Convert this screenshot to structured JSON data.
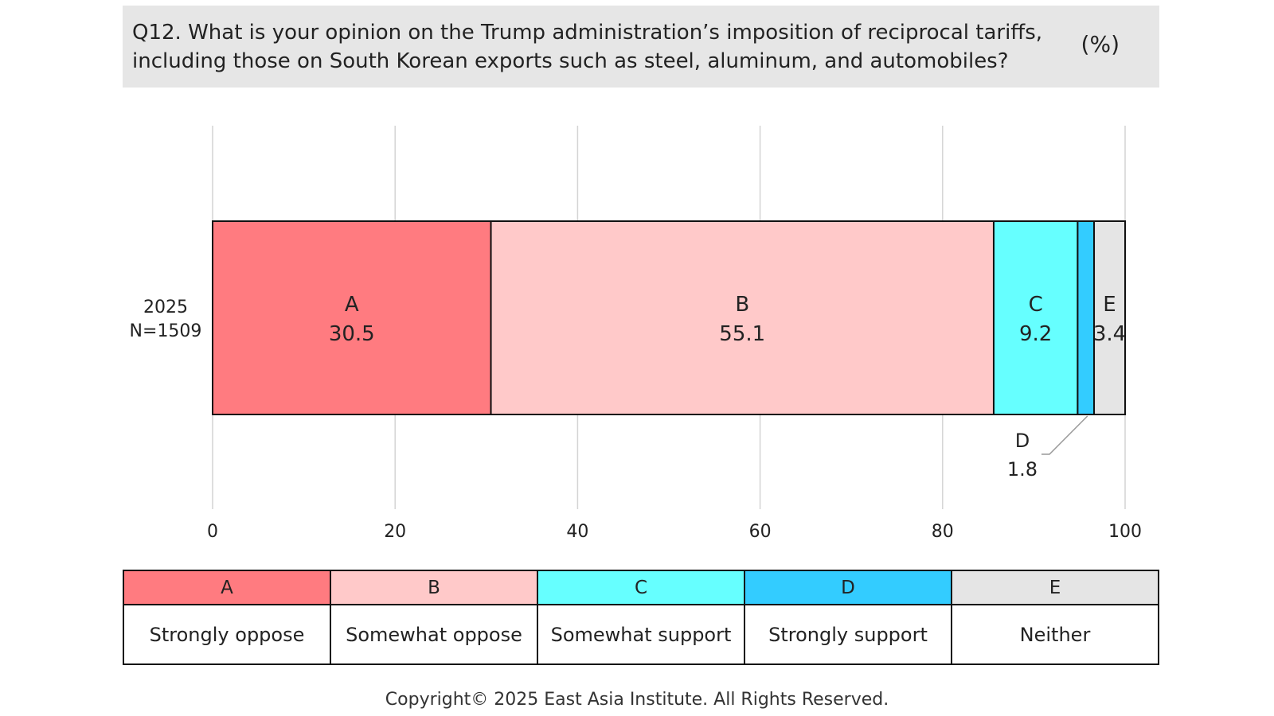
{
  "question": {
    "text": "Q12. What is your opinion on the Trump administration’s imposition of reciprocal tariffs, including those on South Korean exports such as steel, aluminum, and automobiles?",
    "unit": "(%)"
  },
  "chart_data": {
    "type": "bar",
    "orientation": "horizontal",
    "stacked": true,
    "categories": [
      "2025\nN=1509"
    ],
    "series": [
      {
        "name": "A",
        "values": [
          30.5
        ],
        "color": "#ff7b80"
      },
      {
        "name": "B",
        "values": [
          55.1
        ],
        "color": "#ffc9c9"
      },
      {
        "name": "C",
        "values": [
          9.2
        ],
        "color": "#66ffff"
      },
      {
        "name": "D",
        "values": [
          1.8
        ],
        "color": "#33ccff"
      },
      {
        "name": "E",
        "values": [
          3.4
        ],
        "color": "#e5e5e5"
      }
    ],
    "xlim": [
      0,
      100
    ],
    "xticks": [
      "0",
      "20",
      "40",
      "60",
      "80",
      "100"
    ],
    "grid": "vertical",
    "category_label_lines": [
      "2025",
      "N=1509"
    ]
  },
  "legend": [
    {
      "key": "A",
      "label": "Strongly oppose",
      "color": "#ff7b80"
    },
    {
      "key": "B",
      "label": "Somewhat oppose",
      "color": "#ffc9c9"
    },
    {
      "key": "C",
      "label": "Somewhat support",
      "color": "#66ffff"
    },
    {
      "key": "D",
      "label": "Strongly support",
      "color": "#33ccff"
    },
    {
      "key": "E",
      "label": "Neither",
      "color": "#e5e5e5"
    }
  ],
  "footer": {
    "copyright": "Copyright© 2025 East Asia Institute. All Rights Reserved."
  }
}
